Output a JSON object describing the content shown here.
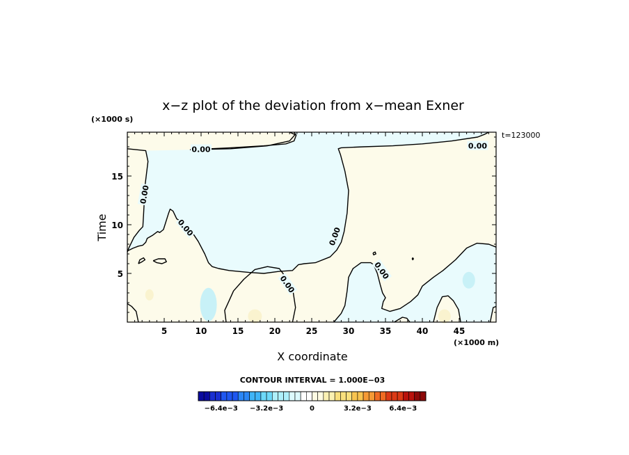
{
  "chart_data": {
    "type": "contour",
    "title": "x−z plot of the deviation from x−mean Exner",
    "xlabel": "X coordinate",
    "ylabel": "Time",
    "x_unit": "(×1000 m)",
    "y_unit": "(×1000 s)",
    "time_label": "t=123000",
    "xlim": [
      0,
      50
    ],
    "ylim": [
      0,
      19.5
    ],
    "x_ticks": [
      5,
      10,
      15,
      20,
      25,
      30,
      35,
      40,
      45
    ],
    "y_ticks": [
      5,
      10,
      15
    ],
    "contour_level_label": "0.00",
    "contour_interval": "CONTOUR INTERVAL = 1.000E−03",
    "colorbar": {
      "tick_labels": [
        "−6.4e−3",
        "−3.2e−3",
        "0",
        "3.2e−3",
        "6.4e−3"
      ],
      "tick_values": [
        -0.0064,
        -0.0032,
        0,
        0.0032,
        0.0064
      ],
      "range": [
        -0.008,
        0.008
      ],
      "colors": [
        "#0a0a9e",
        "#1a2fd1",
        "#1f57f0",
        "#2b86f5",
        "#3fb4f7",
        "#6dd9f9",
        "#aef0fb",
        "#ddfafd",
        "#ffffff",
        "#fefbe2",
        "#fbf1b2",
        "#f9e07d",
        "#f8c450",
        "#f59a35",
        "#f06c23",
        "#dc3a16",
        "#b9120c",
        "#8c0808"
      ]
    },
    "field_colors": {
      "negative": "#e9fbfd",
      "positive": "#fdfbea",
      "strong_negative": "#c8f1f7",
      "strong_positive": "#faf3cf"
    },
    "zero_contour_paths_data_units": [
      [
        [
          0,
          17.8
        ],
        [
          2.5,
          17.6
        ],
        [
          2.8,
          16.5
        ],
        [
          2.4,
          14
        ],
        [
          2.3,
          12.5
        ],
        [
          2.2,
          11
        ],
        [
          2.1,
          9.8
        ],
        [
          1.6,
          9.4
        ],
        [
          0.9,
          8.7
        ],
        [
          0.2,
          7.6
        ],
        [
          0,
          7.2
        ]
      ],
      [
        [
          0,
          7.3
        ],
        [
          0.8,
          7.6
        ],
        [
          1.5,
          7.8
        ],
        [
          2.1,
          7.9
        ],
        [
          2.5,
          8.2
        ],
        [
          2.7,
          8.6
        ],
        [
          3.4,
          8.9
        ],
        [
          4.1,
          9.3
        ],
        [
          4.4,
          9.2
        ],
        [
          4.9,
          9.5
        ],
        [
          5.6,
          11.2
        ],
        [
          5.8,
          11.6
        ],
        [
          6.2,
          11.4
        ],
        [
          6.7,
          10.6
        ],
        [
          7.8,
          10.1
        ],
        [
          8.8,
          9.2
        ],
        [
          9.6,
          8.3
        ],
        [
          10.5,
          7.0
        ],
        [
          11.0,
          6.1
        ],
        [
          11.5,
          5.7
        ],
        [
          12.4,
          5.5
        ],
        [
          13.8,
          5.3
        ],
        [
          16.5,
          5.1
        ],
        [
          18.5,
          5.0
        ],
        [
          20.5,
          5.2
        ],
        [
          22.4,
          5.3
        ],
        [
          23.2,
          5.9
        ],
        [
          24.0,
          6.0
        ],
        [
          25.5,
          6.1
        ],
        [
          27.5,
          6.7
        ],
        [
          28.4,
          7.4
        ],
        [
          29.0,
          8.2
        ],
        [
          29.4,
          9.3
        ],
        [
          29.8,
          11.2
        ],
        [
          30.0,
          13.5
        ],
        [
          29.5,
          15.5
        ],
        [
          28.9,
          17.2
        ],
        [
          28.6,
          17.8
        ],
        [
          29.0,
          17.9
        ],
        [
          32.0,
          18.0
        ],
        [
          36.0,
          18.1
        ],
        [
          40.0,
          18.3
        ],
        [
          44.0,
          18.6
        ],
        [
          47.5,
          19.0
        ],
        [
          48.5,
          19.3
        ],
        [
          49.0,
          19.5
        ]
      ],
      [
        [
          8.5,
          17.7
        ],
        [
          14.0,
          17.8
        ],
        [
          19.0,
          18.1
        ],
        [
          22.0,
          18.6
        ],
        [
          22.8,
          19.3
        ],
        [
          22.6,
          19.5
        ]
      ],
      [
        [
          22.0,
          19.5
        ],
        [
          22.9,
          19.2
        ],
        [
          22.6,
          18.6
        ],
        [
          21.5,
          18.3
        ],
        [
          18.5,
          18.1
        ],
        [
          14.0,
          17.9
        ],
        [
          8.5,
          17.7
        ]
      ],
      [
        [
          1.5,
          6.0
        ],
        [
          2.0,
          6.2
        ],
        [
          2.4,
          6.4
        ],
        [
          2.2,
          6.6
        ],
        [
          1.7,
          6.4
        ],
        [
          1.5,
          6.0
        ]
      ],
      [
        [
          3.5,
          6.3
        ],
        [
          4.2,
          6.5
        ],
        [
          5.1,
          6.5
        ],
        [
          5.3,
          6.2
        ],
        [
          4.7,
          6.0
        ],
        [
          4.0,
          6.1
        ],
        [
          3.5,
          6.3
        ]
      ],
      [
        [
          13.4,
          0
        ],
        [
          13.2,
          1.2
        ],
        [
          13.8,
          2.2
        ],
        [
          14.4,
          3.2
        ],
        [
          15.8,
          4.4
        ],
        [
          17.3,
          5.4
        ],
        [
          19.0,
          5.7
        ],
        [
          20.6,
          5.5
        ],
        [
          21.8,
          4.3
        ],
        [
          22.5,
          3.0
        ],
        [
          22.8,
          1.5
        ],
        [
          22.4,
          0
        ]
      ],
      [
        [
          0,
          1.9
        ],
        [
          0.6,
          1.6
        ],
        [
          1.2,
          1.1
        ],
        [
          1.5,
          0
        ]
      ],
      [
        [
          28.0,
          0
        ],
        [
          29.0,
          0.9
        ],
        [
          29.5,
          1.7
        ],
        [
          29.8,
          3.2
        ],
        [
          30.0,
          4.6
        ],
        [
          30.6,
          5.5
        ],
        [
          31.7,
          6.1
        ],
        [
          33.0,
          6.1
        ],
        [
          33.4,
          5.9
        ],
        [
          33.9,
          5.0
        ],
        [
          34.3,
          3.8
        ],
        [
          34.6,
          3.0
        ],
        [
          35.0,
          2.5
        ],
        [
          34.7,
          2.1
        ],
        [
          34.5,
          1.4
        ],
        [
          35.6,
          1.1
        ],
        [
          37.0,
          1.4
        ],
        [
          38.4,
          2.1
        ],
        [
          39.4,
          2.8
        ],
        [
          40.0,
          3.7
        ],
        [
          41.5,
          4.6
        ],
        [
          42.8,
          5.3
        ],
        [
          44.5,
          6.4
        ],
        [
          46.0,
          7.6
        ],
        [
          47.4,
          8.1
        ],
        [
          49.0,
          8.0
        ],
        [
          50,
          7.7
        ]
      ],
      [
        [
          33.3,
          7.1
        ],
        [
          33.6,
          7.2
        ],
        [
          33.7,
          7.0
        ],
        [
          33.4,
          6.9
        ],
        [
          33.3,
          7.1
        ]
      ],
      [
        [
          38.6,
          6.5
        ],
        [
          38.7,
          6.6
        ],
        [
          38.8,
          6.5
        ],
        [
          38.7,
          6.4
        ],
        [
          38.6,
          6.5
        ]
      ],
      [
        [
          36.2,
          0
        ],
        [
          37.3,
          0.5
        ],
        [
          37.9,
          0.4
        ],
        [
          38.3,
          0
        ]
      ],
      [
        [
          41.5,
          0
        ],
        [
          42.0,
          1.5
        ],
        [
          42.7,
          2.6
        ],
        [
          43.5,
          2.7
        ],
        [
          44.2,
          2.2
        ],
        [
          44.9,
          1.3
        ],
        [
          45.2,
          0
        ]
      ],
      [
        [
          49.2,
          0
        ],
        [
          49.6,
          1.5
        ],
        [
          50,
          1.6
        ]
      ]
    ]
  }
}
